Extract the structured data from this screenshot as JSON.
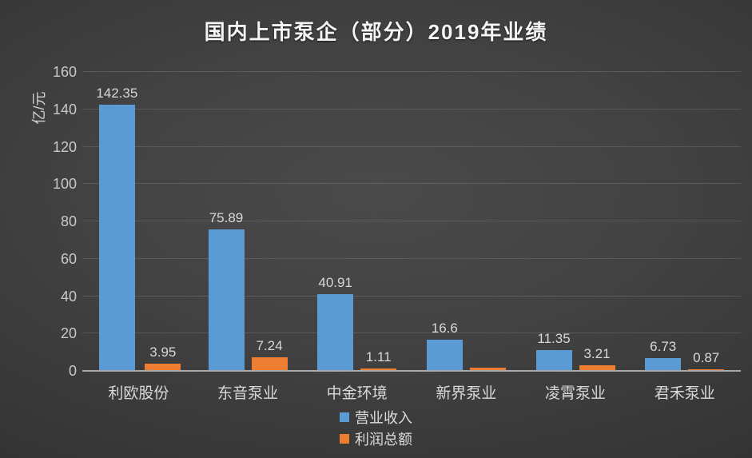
{
  "title": "国内上市泵企（部分）2019年业绩",
  "y_axis": {
    "unit_label": "亿/元",
    "min": 0,
    "max": 160,
    "step": 20,
    "ticks": [
      "0",
      "20",
      "40",
      "60",
      "80",
      "100",
      "120",
      "140",
      "160"
    ]
  },
  "legend": [
    {
      "key": "revenue",
      "label": "营业收入",
      "color": "#5B9BD5"
    },
    {
      "key": "profit",
      "label": "利润总额",
      "color": "#ED7D31"
    }
  ],
  "chart_data": {
    "type": "bar",
    "title": "国内上市泵企（部分）2019年业绩",
    "categories": [
      "利欧股份",
      "东音泵业",
      "中金环境",
      "新界泵业",
      "凌霄泵业",
      "君禾泵业"
    ],
    "series": [
      {
        "name": "营业收入",
        "key": "revenue",
        "color": "#5B9BD5",
        "values": [
          142.35,
          75.89,
          40.91,
          16.6,
          11.35,
          6.73
        ],
        "labels": [
          "142.35",
          "75.89",
          "40.91",
          "16.6",
          "11.35",
          "6.73"
        ]
      },
      {
        "name": "利润总额",
        "key": "profit",
        "color": "#ED7D31",
        "values": [
          3.95,
          7.24,
          1.11,
          1.6,
          3.21,
          0.87
        ],
        "labels": [
          "3.95",
          "7.24",
          "1.11",
          "",
          "3.21",
          "0.87"
        ]
      }
    ],
    "xlabel": "",
    "ylabel": "亿/元",
    "ylim": [
      0,
      160
    ],
    "grid": true,
    "legend_position": "bottom"
  }
}
